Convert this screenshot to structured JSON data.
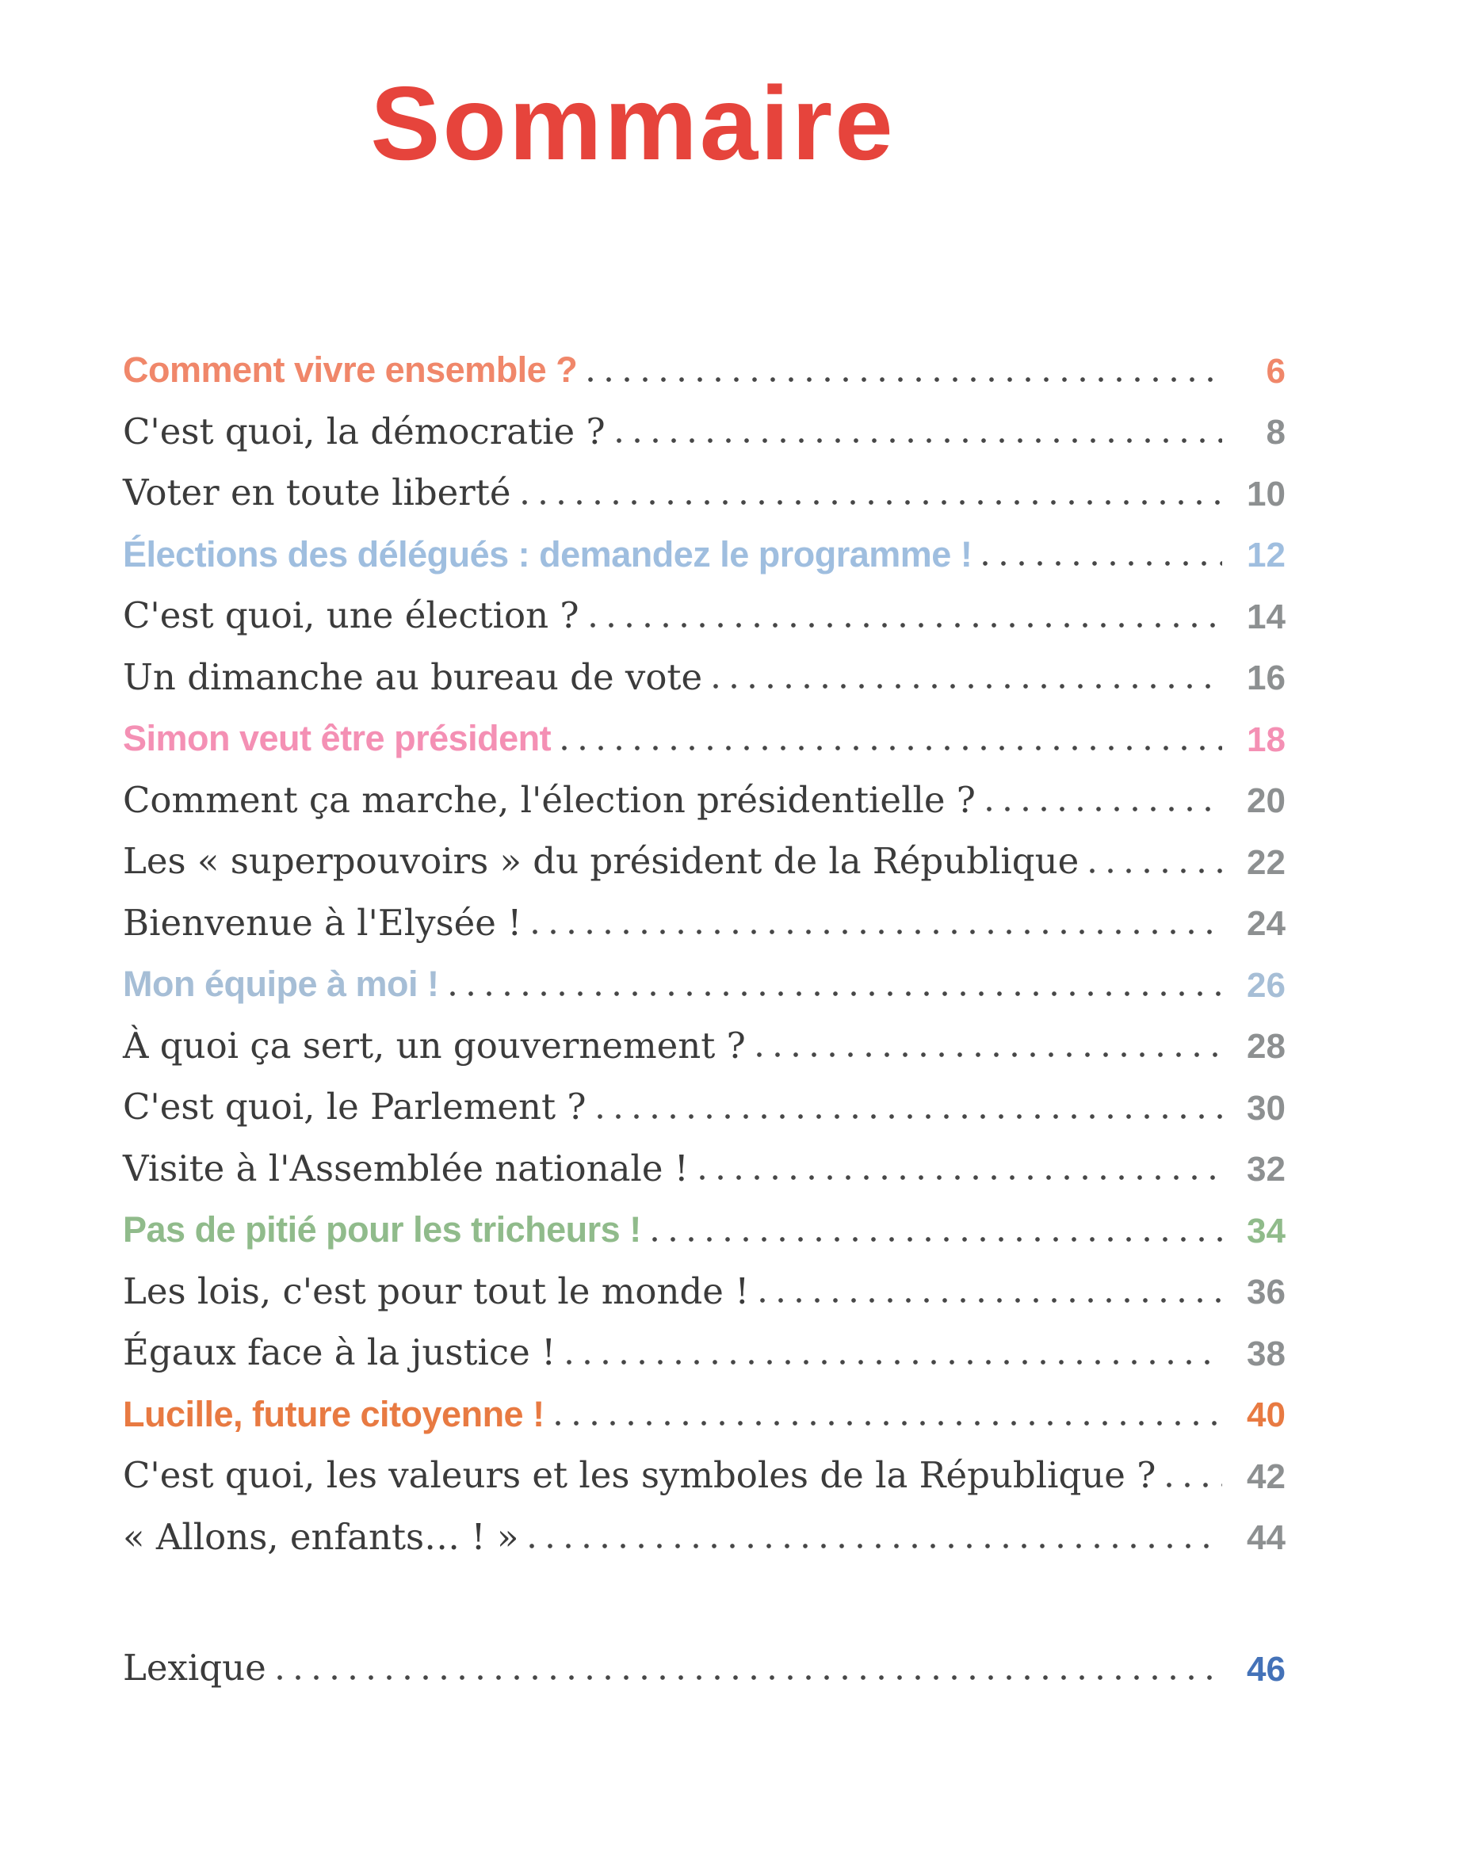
{
  "page": {
    "title": "Sommaire",
    "title_color": "#e6443c"
  },
  "toc": {
    "entries": [
      {
        "label": "Comment vivre ensemble ?",
        "page": "6",
        "type": "section",
        "color": "#f0876a"
      },
      {
        "label": "C'est quoi, la démocratie ?",
        "page": "8",
        "type": "item"
      },
      {
        "label": "Voter en toute liberté",
        "page": "10",
        "type": "item"
      },
      {
        "label": "Élections des délégués : demandez le programme !",
        "page": "12",
        "type": "section",
        "color": "#9fbedf"
      },
      {
        "label": "C'est quoi, une élection ?",
        "page": "14",
        "type": "item"
      },
      {
        "label": "Un dimanche au bureau de vote",
        "page": "16",
        "type": "item"
      },
      {
        "label": "Simon veut être président",
        "page": "18",
        "type": "section",
        "color": "#f490b4"
      },
      {
        "label": "Comment ça marche, l'élection présidentielle ?",
        "page": "20",
        "type": "item"
      },
      {
        "label": "Les « superpouvoirs » du président de la République",
        "page": "22",
        "type": "item"
      },
      {
        "label": "Bienvenue à l'Elysée !",
        "page": "24",
        "type": "item"
      },
      {
        "label": "Mon équipe à moi !",
        "page": "26",
        "type": "section",
        "color": "#a6bed6"
      },
      {
        "label": "À quoi ça sert, un gouvernement ?",
        "page": "28",
        "type": "item"
      },
      {
        "label": "C'est quoi, le Parlement ?",
        "page": "30",
        "type": "item"
      },
      {
        "label": "Visite à l'Assemblée nationale !",
        "page": "32",
        "type": "item"
      },
      {
        "label": "Pas de pitié pour les tricheurs !",
        "page": "34",
        "type": "section",
        "color": "#90bb8b"
      },
      {
        "label": "Les lois, c'est pour tout le monde !",
        "page": "36",
        "type": "item"
      },
      {
        "label": "Égaux face à la justice !",
        "page": "38",
        "type": "item"
      },
      {
        "label": "Lucille, future citoyenne !",
        "page": "40",
        "type": "section",
        "color": "#e87a42"
      },
      {
        "label": "C'est quoi, les valeurs et les symboles de la République ?",
        "page": "42",
        "type": "item"
      },
      {
        "label": "« Allons, enfants… ! »",
        "page": "44",
        "type": "item"
      }
    ],
    "footer_entry": {
      "label": "Lexique",
      "page": "46",
      "page_color": "#4472b8"
    }
  },
  "colors": {
    "body_text": "#3b3b3b",
    "page_number_gray": "#8d9091",
    "dot_leader": "#474747",
    "background": "#ffffff"
  }
}
